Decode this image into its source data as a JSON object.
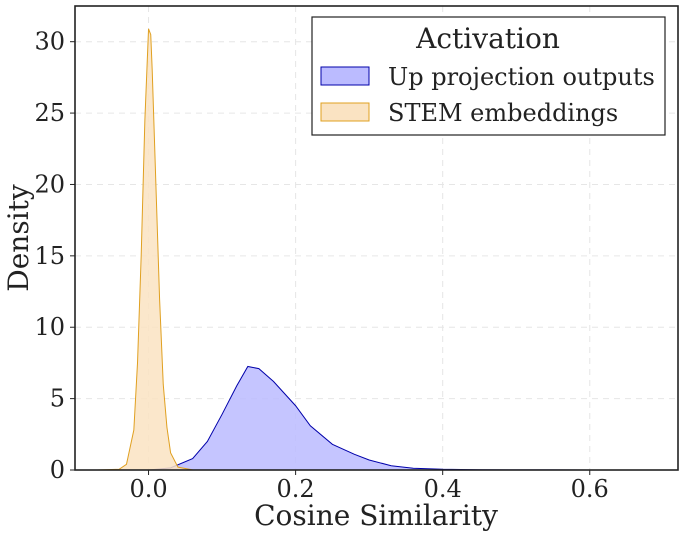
{
  "chart_data": {
    "type": "area",
    "title": "",
    "xlabel": "Cosine Similarity",
    "ylabel": "Density",
    "xlim": [
      -0.1,
      0.72
    ],
    "ylim": [
      0,
      32.5
    ],
    "xticks": [
      0.0,
      0.2,
      0.4,
      0.6
    ],
    "xtick_labels": [
      "0.0",
      "0.2",
      "0.4",
      "0.6"
    ],
    "yticks": [
      0,
      5,
      10,
      15,
      20,
      25,
      30
    ],
    "ytick_labels": [
      "0",
      "5",
      "10",
      "15",
      "20",
      "25",
      "30"
    ],
    "grid": true,
    "legend": {
      "title": "Activation",
      "placement": "top-right",
      "entries": [
        "Up projection outputs",
        "STEM embeddings"
      ]
    },
    "series": [
      {
        "name": "Up projection outputs",
        "fill_color": "#bbbbff",
        "line_color": "#0000aa",
        "x": [
          0.0,
          0.03,
          0.06,
          0.08,
          0.1,
          0.12,
          0.135,
          0.15,
          0.17,
          0.2,
          0.22,
          0.25,
          0.28,
          0.3,
          0.33,
          0.36,
          0.4,
          0.45,
          0.5,
          0.55,
          0.6,
          0.68
        ],
        "y": [
          0.0,
          0.15,
          0.8,
          2.0,
          3.9,
          5.9,
          7.25,
          7.1,
          6.2,
          4.5,
          3.1,
          1.8,
          1.1,
          0.7,
          0.3,
          0.12,
          0.05,
          0.02,
          0.01,
          0.005,
          0.0,
          0.0
        ]
      },
      {
        "name": "STEM embeddings",
        "fill_color": "#fae3c2",
        "line_color": "#e0a020",
        "x": [
          -0.07,
          -0.04,
          -0.03,
          -0.02,
          -0.015,
          -0.01,
          -0.005,
          0.0,
          0.003,
          0.005,
          0.01,
          0.015,
          0.02,
          0.025,
          0.03,
          0.04,
          0.06,
          0.08
        ],
        "y": [
          0.0,
          0.05,
          0.4,
          2.8,
          7.5,
          15.0,
          24.5,
          30.9,
          30.5,
          28.0,
          20.0,
          12.0,
          6.0,
          3.0,
          1.2,
          0.2,
          0.01,
          0.0
        ]
      }
    ]
  }
}
